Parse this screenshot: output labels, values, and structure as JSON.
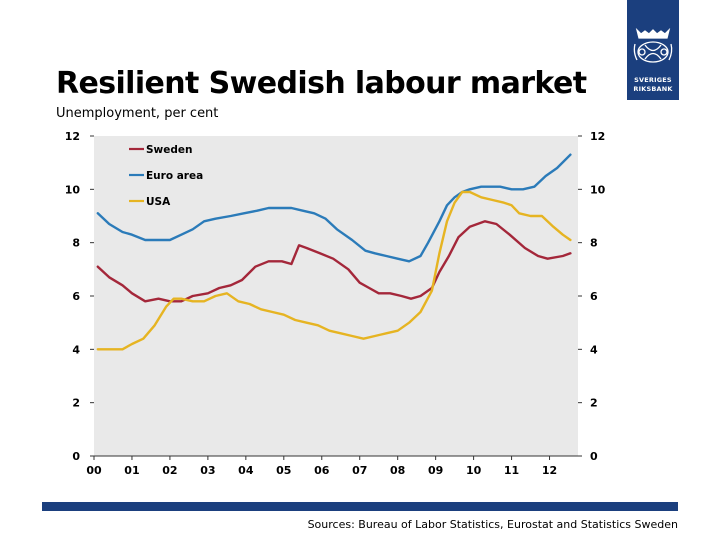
{
  "title": "Resilient Swedish labour market",
  "subtitle": "Unemployment, per cent",
  "logo": {
    "line1": "SVERIGES",
    "line2": "RIKSBANK"
  },
  "source": "Sources: Bureau of Labor Statistics, Eurostat and Statistics Sweden",
  "colors": {
    "brand": "#1b3f7e",
    "sweden": "#a4273a",
    "euro": "#2b7bb9",
    "usa": "#e6b422",
    "plot_bg": "#e9e9e9"
  },
  "chart_data": {
    "type": "line",
    "title": "",
    "xlabel": "",
    "ylabel": "",
    "xlim": [
      0,
      12.75
    ],
    "ylim": [
      0,
      12
    ],
    "x_ticks": [
      "00",
      "01",
      "02",
      "03",
      "04",
      "05",
      "06",
      "07",
      "08",
      "09",
      "10",
      "11",
      "12"
    ],
    "y_ticks": [
      0,
      2,
      4,
      6,
      8,
      10,
      12
    ],
    "y_ticks_right": [
      0,
      2,
      4,
      6,
      8,
      10,
      12
    ],
    "legend": "top-left",
    "series": [
      {
        "name": "Sweden",
        "x": [
          0.1,
          0.4,
          0.75,
          1.0,
          1.35,
          1.7,
          2.0,
          2.3,
          2.6,
          3.0,
          3.3,
          3.6,
          3.9,
          4.25,
          4.6,
          4.95,
          5.2,
          5.4,
          5.6,
          5.95,
          6.3,
          6.7,
          7.0,
          7.25,
          7.5,
          7.8,
          8.1,
          8.35,
          8.6,
          8.9,
          9.1,
          9.35,
          9.6,
          9.9,
          10.3,
          10.6,
          10.95,
          11.35,
          11.7,
          11.95,
          12.35,
          12.55
        ],
        "values": [
          7.1,
          6.7,
          6.4,
          6.1,
          5.8,
          5.9,
          5.8,
          5.8,
          6.0,
          6.1,
          6.3,
          6.4,
          6.6,
          7.1,
          7.3,
          7.3,
          7.2,
          7.9,
          7.8,
          7.6,
          7.4,
          7.0,
          6.5,
          6.3,
          6.1,
          6.1,
          6.0,
          5.9,
          6.0,
          6.3,
          6.9,
          7.5,
          8.2,
          8.6,
          8.8,
          8.7,
          8.3,
          7.8,
          7.5,
          7.4,
          7.5,
          7.6
        ]
      },
      {
        "name": "Euro area",
        "x": [
          0.1,
          0.4,
          0.75,
          1.0,
          1.35,
          1.7,
          2.0,
          2.3,
          2.6,
          2.9,
          3.2,
          3.6,
          3.95,
          4.3,
          4.6,
          4.9,
          5.2,
          5.5,
          5.8,
          6.1,
          6.4,
          6.8,
          7.15,
          7.4,
          7.7,
          8.0,
          8.3,
          8.6,
          8.8,
          9.1,
          9.3,
          9.5,
          9.7,
          9.9,
          10.2,
          10.5,
          10.7,
          11.0,
          11.3,
          11.6,
          11.9,
          12.2,
          12.55
        ],
        "values": [
          9.1,
          8.7,
          8.4,
          8.3,
          8.1,
          8.1,
          8.1,
          8.3,
          8.5,
          8.8,
          8.9,
          9.0,
          9.1,
          9.2,
          9.3,
          9.3,
          9.3,
          9.2,
          9.1,
          8.9,
          8.5,
          8.1,
          7.7,
          7.6,
          7.5,
          7.4,
          7.3,
          7.5,
          8.0,
          8.8,
          9.4,
          9.7,
          9.9,
          10.0,
          10.1,
          10.1,
          10.1,
          10.0,
          10.0,
          10.1,
          10.5,
          10.8,
          11.3
        ]
      },
      {
        "name": "USA",
        "x": [
          0.1,
          0.4,
          0.75,
          1.0,
          1.3,
          1.6,
          1.9,
          2.1,
          2.3,
          2.6,
          2.9,
          3.2,
          3.5,
          3.8,
          4.1,
          4.4,
          4.7,
          5.0,
          5.3,
          5.6,
          5.9,
          6.2,
          6.5,
          6.8,
          7.1,
          7.4,
          7.7,
          8.0,
          8.3,
          8.6,
          8.9,
          9.1,
          9.3,
          9.5,
          9.7,
          9.9,
          10.2,
          10.5,
          10.8,
          11.0,
          11.2,
          11.5,
          11.8,
          12.1,
          12.35,
          12.55
        ],
        "values": [
          4.0,
          4.0,
          4.0,
          4.2,
          4.4,
          4.9,
          5.6,
          5.9,
          5.9,
          5.8,
          5.8,
          6.0,
          6.1,
          5.8,
          5.7,
          5.5,
          5.4,
          5.3,
          5.1,
          5.0,
          4.9,
          4.7,
          4.6,
          4.5,
          4.4,
          4.5,
          4.6,
          4.7,
          5.0,
          5.4,
          6.2,
          7.6,
          8.8,
          9.5,
          9.9,
          9.9,
          9.7,
          9.6,
          9.5,
          9.4,
          9.1,
          9.0,
          9.0,
          8.6,
          8.3,
          8.1
        ]
      }
    ]
  }
}
